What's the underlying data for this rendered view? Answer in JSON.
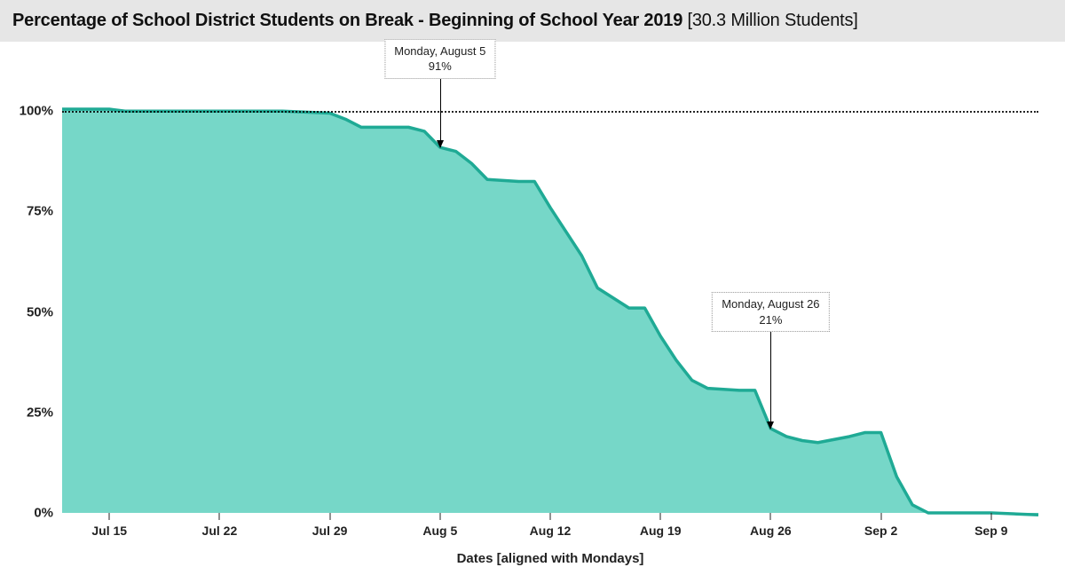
{
  "title": {
    "main": "Percentage of School District Students on Break - Beginning of School Year 2019",
    "suffix": "[30.3 Million Students]",
    "fontsize": 20,
    "background": "#e6e6e6",
    "color": "#111111"
  },
  "chart": {
    "type": "area",
    "background_color": "#ffffff",
    "area_fill": "#63d1c0",
    "area_fill_opacity": 0.88,
    "line_color": "#1faa95",
    "line_width": 3.5,
    "ref_line_value": 100,
    "ref_line_style": "dotted",
    "ref_line_color": "#000000",
    "ylim": [
      0,
      110
    ],
    "xdomain_days": [
      0,
      62
    ],
    "y_ticks": [
      {
        "value": 0,
        "label": "0%"
      },
      {
        "value": 25,
        "label": "25%"
      },
      {
        "value": 50,
        "label": "50%"
      },
      {
        "value": 75,
        "label": "75%"
      },
      {
        "value": 100,
        "label": "100%"
      }
    ],
    "x_ticks": [
      {
        "day": 3,
        "label": "Jul 15"
      },
      {
        "day": 10,
        "label": "Jul 22"
      },
      {
        "day": 17,
        "label": "Jul 29"
      },
      {
        "day": 24,
        "label": "Aug 5"
      },
      {
        "day": 31,
        "label": "Aug 12"
      },
      {
        "day": 38,
        "label": "Aug 19"
      },
      {
        "day": 45,
        "label": "Aug 26"
      },
      {
        "day": 52,
        "label": "Sep 2"
      },
      {
        "day": 59,
        "label": "Sep 9"
      }
    ],
    "x_axis_label": "Dates [aligned with Mondays]",
    "series": [
      {
        "day": 0,
        "pct": 100.5
      },
      {
        "day": 3,
        "pct": 100.5
      },
      {
        "day": 4,
        "pct": 100
      },
      {
        "day": 10,
        "pct": 100
      },
      {
        "day": 14,
        "pct": 100
      },
      {
        "day": 17,
        "pct": 99.5
      },
      {
        "day": 18,
        "pct": 98
      },
      {
        "day": 19,
        "pct": 96
      },
      {
        "day": 22,
        "pct": 96
      },
      {
        "day": 23,
        "pct": 95
      },
      {
        "day": 24,
        "pct": 91
      },
      {
        "day": 25,
        "pct": 90
      },
      {
        "day": 26,
        "pct": 87
      },
      {
        "day": 27,
        "pct": 83
      },
      {
        "day": 29,
        "pct": 82.5
      },
      {
        "day": 30,
        "pct": 82.5
      },
      {
        "day": 31,
        "pct": 76
      },
      {
        "day": 32,
        "pct": 70
      },
      {
        "day": 33,
        "pct": 64
      },
      {
        "day": 34,
        "pct": 56
      },
      {
        "day": 36,
        "pct": 51
      },
      {
        "day": 37,
        "pct": 51
      },
      {
        "day": 38,
        "pct": 44
      },
      {
        "day": 39,
        "pct": 38
      },
      {
        "day": 40,
        "pct": 33
      },
      {
        "day": 41,
        "pct": 31
      },
      {
        "day": 43,
        "pct": 30.5
      },
      {
        "day": 44,
        "pct": 30.5
      },
      {
        "day": 45,
        "pct": 21
      },
      {
        "day": 46,
        "pct": 19
      },
      {
        "day": 47,
        "pct": 18
      },
      {
        "day": 48,
        "pct": 17.5
      },
      {
        "day": 50,
        "pct": 19
      },
      {
        "day": 51,
        "pct": 20
      },
      {
        "day": 52,
        "pct": 20
      },
      {
        "day": 53,
        "pct": 9
      },
      {
        "day": 54,
        "pct": 2
      },
      {
        "day": 55,
        "pct": 0
      },
      {
        "day": 59,
        "pct": 0
      },
      {
        "day": 62,
        "pct": -0.5
      }
    ],
    "callouts": [
      {
        "day": 24,
        "line1": "Monday, August 5",
        "line2": "91%",
        "arrow_to_pct": 91,
        "box_top_pct": 118
      },
      {
        "day": 45,
        "line1": "Monday, August 26",
        "line2": "21%",
        "arrow_to_pct": 21,
        "box_top_pct": 55
      }
    ]
  }
}
